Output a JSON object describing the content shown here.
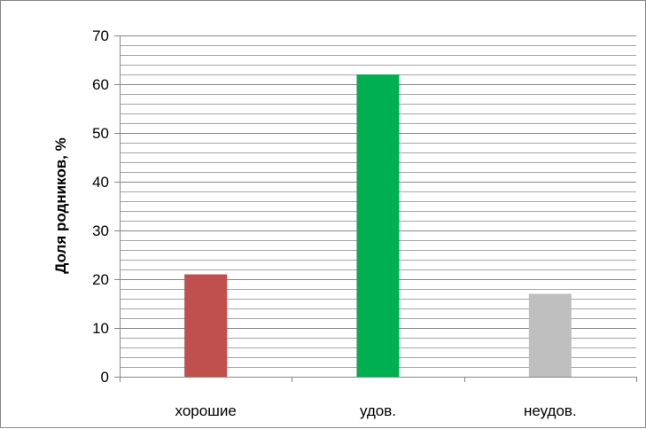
{
  "chart_data": {
    "type": "bar",
    "categories": [
      "хорошие",
      "удов.",
      "неудов."
    ],
    "values": [
      21,
      62,
      17
    ],
    "bar_colors": [
      "#C0504D",
      "#00B050",
      "#BFBFBF"
    ],
    "title": "",
    "xlabel": "",
    "ylabel": "Доля родников, %",
    "ylim": [
      0,
      70
    ],
    "yticks": [
      "0",
      "10",
      "20",
      "30",
      "40",
      "50",
      "60",
      "70"
    ],
    "major_step": 10,
    "minor_step": 2,
    "grid": true,
    "legend": "none",
    "grid_color": "#868686",
    "axis_color": "#868686"
  }
}
